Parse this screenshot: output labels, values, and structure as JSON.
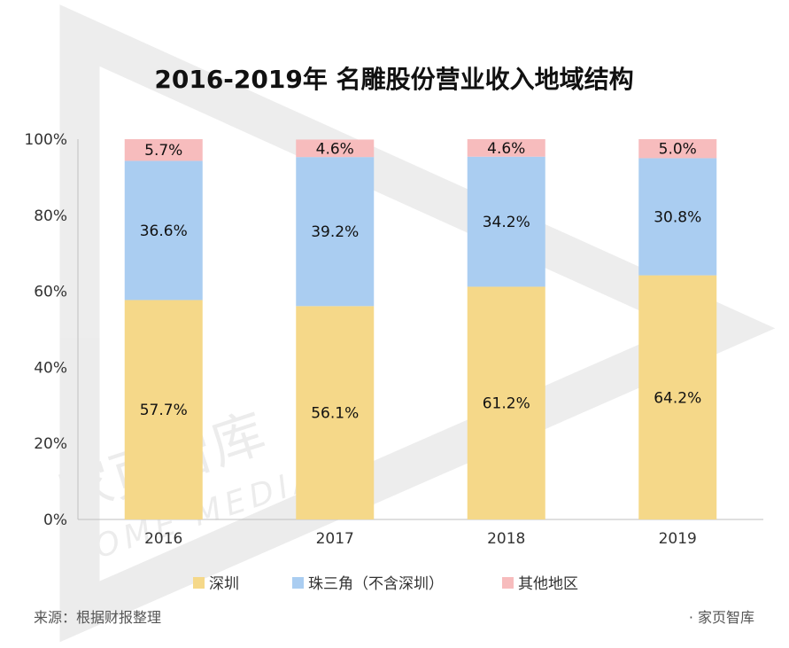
{
  "chart_data": {
    "type": "bar",
    "stacked": true,
    "title": "2016-2019年 名雕股份营业收入地域结构",
    "categories": [
      "2016",
      "2017",
      "2018",
      "2019"
    ],
    "series": [
      {
        "name": "深圳",
        "color": "#F5D889",
        "values": [
          57.7,
          56.1,
          61.2,
          64.2
        ],
        "labels": [
          "57.7%",
          "56.1%",
          "61.2%",
          "64.2%"
        ]
      },
      {
        "name": "珠三角（不含深圳）",
        "color": "#AACDF1",
        "values": [
          36.6,
          39.2,
          34.2,
          30.8
        ],
        "labels": [
          "36.6%",
          "39.2%",
          "34.2%",
          "30.8%"
        ]
      },
      {
        "name": "其他地区",
        "color": "#F7BCBD",
        "values": [
          5.7,
          4.6,
          4.6,
          5.0
        ],
        "labels": [
          "5.7%",
          "4.6%",
          "4.6%",
          "5.0%"
        ]
      }
    ],
    "ylim": [
      0,
      100
    ],
    "yticks": [
      "0%",
      "20%",
      "40%",
      "60%",
      "80%",
      "100%"
    ],
    "legend_position": "bottom",
    "grid": false
  },
  "source": "来源：根据财报整理",
  "brand": "· 家页智库",
  "watermark": {
    "cn": "家页智库",
    "en": "HOME MEDIA"
  }
}
